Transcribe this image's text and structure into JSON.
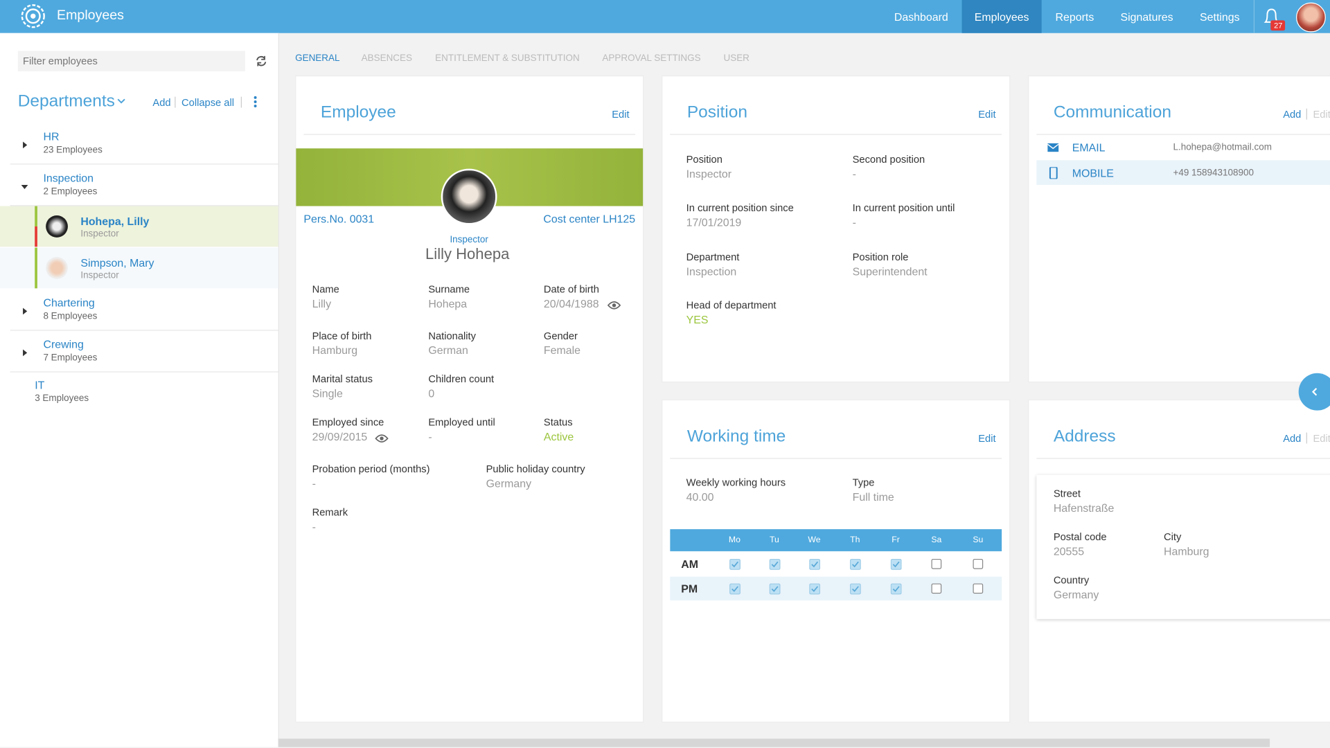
{
  "nav": {
    "brand": "Employees",
    "items": [
      "Dashboard",
      "Employees",
      "Reports",
      "Signatures",
      "Settings"
    ],
    "active_item": 1,
    "notifications": "27"
  },
  "sidebar": {
    "filter_placeholder": "Filter employees",
    "departments_title": "Departments",
    "add": "Add",
    "collapse_all": "Collapse all",
    "departments": [
      {
        "name": "HR",
        "count": "23 Employees"
      },
      {
        "name": "Inspection",
        "count": "2 Employees",
        "expanded": true,
        "employees": [
          {
            "name": "Hohepa, Lilly",
            "role": "Inspector",
            "selected": true
          },
          {
            "name": "Simpson, Mary",
            "role": "Inspector"
          }
        ]
      },
      {
        "name": "Chartering",
        "count": "8 Employees"
      },
      {
        "name": "Crewing",
        "count": "7 Employees"
      },
      {
        "name": "IT",
        "count": "3 Employees"
      }
    ]
  },
  "tabs": {
    "items": [
      "GENERAL",
      "ABSENCES",
      "ENTITLEMENT & SUBSTITUTION",
      "APPROVAL SETTINGS",
      "USER"
    ],
    "active_item": 0
  },
  "employee": {
    "title": "Employee",
    "edit": "Edit",
    "pers_no": "Pers.No. 0031",
    "cost_center": "Cost center LH125",
    "role": "Inspector",
    "full_name": "Lilly Hohepa",
    "fields": [
      {
        "label": "Name",
        "value": "Lilly"
      },
      {
        "label": "Surname",
        "value": "Hohepa"
      },
      {
        "label": "Date of birth",
        "value": "20/04/1988"
      },
      {
        "label": "Place of birth",
        "value": "Hamburg"
      },
      {
        "label": "Nationality",
        "value": "German"
      },
      {
        "label": "Gender",
        "value": "Female"
      },
      {
        "label": "Marital status",
        "value": "Single"
      },
      {
        "label": "Children count",
        "value": "0"
      },
      {
        "label": "Employed since",
        "value": "29/09/2015"
      },
      {
        "label": "Employed until",
        "value": "-"
      },
      {
        "label": "Status",
        "value": "Active",
        "highlight": true
      },
      {
        "label": "Probation period (months)",
        "value": "-"
      },
      {
        "label": "Public holiday country",
        "value": "Germany"
      },
      {
        "label": "Remark",
        "value": "-"
      }
    ]
  },
  "position": {
    "title": "Position",
    "edit": "Edit",
    "fields": [
      {
        "label": "Position",
        "value": "Inspector"
      },
      {
        "label": "Second position",
        "value": "-"
      },
      {
        "label": "In current position since",
        "value": "17/01/2019"
      },
      {
        "label": "In current position until",
        "value": "-"
      },
      {
        "label": "Department",
        "value": "Inspection"
      },
      {
        "label": "Position role",
        "value": "Superintendent"
      },
      {
        "label": "Head of department",
        "value": "YES",
        "highlight": true
      }
    ]
  },
  "communication": {
    "title": "Communication",
    "add": "Add",
    "edit": "Edit",
    "items": [
      {
        "type": "EMAIL",
        "value": "L.hohepa@hotmail.com"
      },
      {
        "type": "MOBILE",
        "value": "+49 158943108900"
      }
    ]
  },
  "working_time": {
    "title": "Working time",
    "edit": "Edit",
    "fields": [
      {
        "label": "Weekly working hours",
        "value": "40.00"
      },
      {
        "label": "Type",
        "value": "Full time"
      }
    ],
    "days": [
      "Mo",
      "Tu",
      "We",
      "Th",
      "Fr",
      "Sa",
      "Su"
    ],
    "rows": [
      {
        "label": "AM",
        "checked": [
          true,
          true,
          true,
          true,
          true,
          false,
          false
        ]
      },
      {
        "label": "PM",
        "checked": [
          true,
          true,
          true,
          true,
          true,
          false,
          false
        ]
      }
    ]
  },
  "address": {
    "title": "Address",
    "add": "Add",
    "edit": "Edit",
    "fields": [
      {
        "label": "Street",
        "value": "Hafenstraße"
      },
      {
        "label": "Postal code",
        "value": "20555"
      },
      {
        "label": "City",
        "value": "Hamburg"
      },
      {
        "label": "Country",
        "value": "Germany"
      }
    ]
  }
}
